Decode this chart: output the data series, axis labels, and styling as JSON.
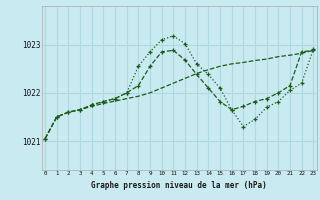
{
  "title": "Graphe pression niveau de la mer (hPa)",
  "bg_color": "#c8eaf0",
  "grid_color": "#b0d8e0",
  "line_color": "#1a5c1a",
  "x_ticks": [
    0,
    1,
    2,
    3,
    4,
    5,
    6,
    7,
    8,
    9,
    10,
    11,
    12,
    13,
    14,
    15,
    16,
    17,
    18,
    19,
    20,
    21,
    22,
    23
  ],
  "y_ticks": [
    1021,
    1022,
    1023
  ],
  "xlim": [
    -0.3,
    23.3
  ],
  "ylim": [
    1020.4,
    1023.8
  ],
  "series1_x": [
    0,
    1,
    2,
    3,
    4,
    5,
    6,
    7,
    8,
    9,
    10,
    11,
    12,
    13,
    14,
    15,
    16,
    17,
    18,
    19,
    20,
    21,
    22,
    23
  ],
  "series1_y": [
    1021.05,
    1021.5,
    1021.6,
    1021.65,
    1021.72,
    1021.78,
    1021.83,
    1021.88,
    1021.93,
    1022.0,
    1022.1,
    1022.2,
    1022.3,
    1022.4,
    1022.48,
    1022.55,
    1022.6,
    1022.63,
    1022.67,
    1022.7,
    1022.75,
    1022.78,
    1022.82,
    1022.88
  ],
  "series2_x": [
    0,
    1,
    2,
    3,
    4,
    5,
    6,
    7,
    8,
    9,
    10,
    11,
    12,
    13,
    14,
    15,
    16,
    17,
    18,
    19,
    20,
    21,
    22,
    23
  ],
  "series2_y": [
    1021.05,
    1021.5,
    1021.6,
    1021.65,
    1021.75,
    1021.82,
    1021.88,
    1022.0,
    1022.15,
    1022.55,
    1022.85,
    1022.88,
    1022.68,
    1022.38,
    1022.1,
    1021.82,
    1021.65,
    1021.72,
    1021.82,
    1021.88,
    1022.0,
    1022.15,
    1022.85,
    1022.88
  ],
  "series3_x": [
    0,
    1,
    2,
    3,
    4,
    5,
    6,
    7,
    8,
    9,
    10,
    11,
    12,
    13,
    14,
    15,
    16,
    17,
    18,
    19,
    20,
    21,
    22,
    23
  ],
  "series3_y": [
    1021.05,
    1021.5,
    1021.6,
    1021.65,
    1021.75,
    1021.82,
    1021.88,
    1022.0,
    1022.55,
    1022.85,
    1023.1,
    1023.18,
    1023.02,
    1022.6,
    1022.38,
    1022.1,
    1021.65,
    1021.3,
    1021.45,
    1021.7,
    1021.82,
    1022.05,
    1022.2,
    1022.9
  ],
  "bottom_label_color": "#1a1a1a",
  "ylabel_inside": true
}
